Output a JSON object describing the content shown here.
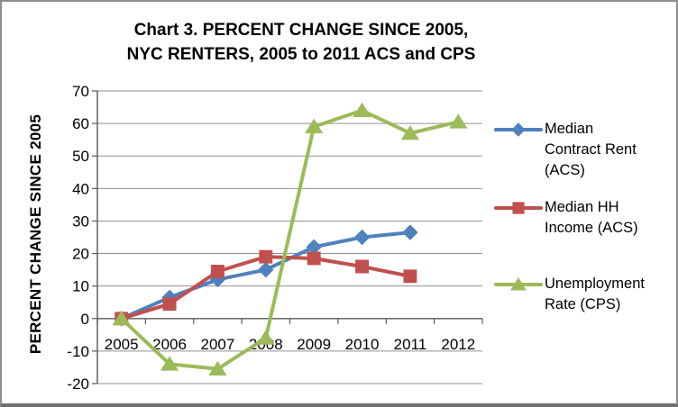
{
  "title": {
    "line1": "Chart 3. PERCENT CHANGE SINCE 2005,",
    "line2": "NYC RENTERS, 2005 to 2011 ACS and CPS"
  },
  "chart_data": {
    "type": "line",
    "title": "Chart 3. PERCENT CHANGE SINCE 2005, NYC RENTERS, 2005 to 2011 ACS and CPS",
    "xlabel": "",
    "ylabel": "PERCENT CHANGE SINCE 2005",
    "categories": [
      "2005",
      "2006",
      "2007",
      "2008",
      "2009",
      "2010",
      "2011",
      "2012"
    ],
    "ylim": [
      -20,
      70
    ],
    "y_ticks": [
      70,
      60,
      50,
      40,
      30,
      20,
      10,
      0,
      -10,
      -20
    ],
    "grid": "horizontal",
    "legend_position": "right",
    "series": [
      {
        "name": "Median Contract Rent (ACS)",
        "legend_lines": [
          "Median",
          "Contract Rent",
          "(ACS)"
        ],
        "marker": "diamond",
        "color": "#4F81BD",
        "values": [
          0,
          6.5,
          12,
          15,
          22,
          25,
          26.5,
          null
        ]
      },
      {
        "name": "Median HH Income (ACS)",
        "legend_lines": [
          "Median HH",
          "Income (ACS)"
        ],
        "marker": "square",
        "color": "#C0504D",
        "values": [
          0,
          4.5,
          14.5,
          19,
          18.5,
          16,
          13,
          null
        ]
      },
      {
        "name": "Unemployment Rate (CPS)",
        "legend_lines": [
          "Unemployment",
          "Rate (CPS)"
        ],
        "marker": "triangle",
        "color": "#9BBB59",
        "values": [
          0,
          -14,
          -15.5,
          -6,
          59,
          64,
          57,
          60.5
        ]
      }
    ],
    "colors": {
      "gridline": "#909090",
      "axis": "#595959",
      "text": "#000000",
      "background": "#ffffff"
    }
  }
}
